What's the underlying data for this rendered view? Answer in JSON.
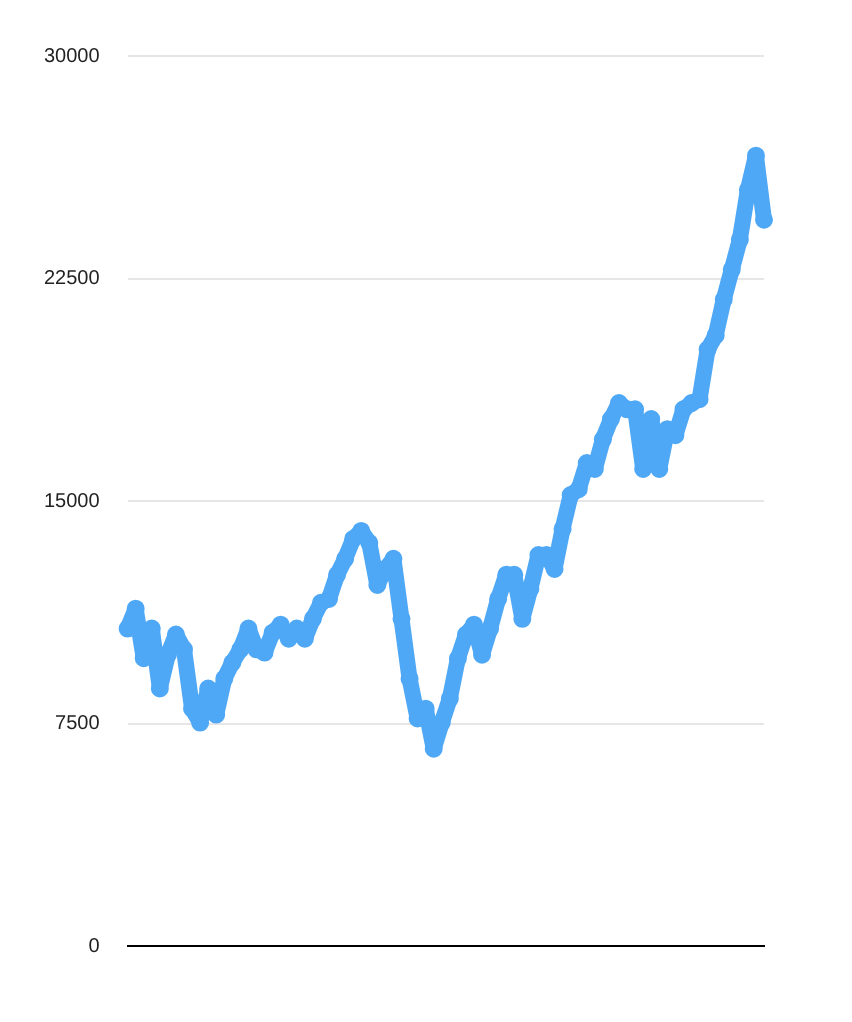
{
  "chart_data": {
    "type": "line",
    "categories": [
      null,
      null,
      null,
      null,
      null,
      null,
      null,
      null,
      null,
      null,
      null,
      null,
      null,
      null,
      null,
      null,
      null,
      null,
      null,
      null,
      null,
      null,
      null,
      null,
      null,
      null,
      null,
      null,
      null,
      null,
      null,
      null,
      null,
      null,
      null,
      null,
      null,
      null,
      null,
      null,
      null,
      null,
      null,
      null,
      null,
      null,
      null,
      null,
      null,
      null,
      null,
      null,
      null,
      null,
      null,
      null,
      null,
      null,
      null,
      null,
      null,
      null,
      null,
      null,
      null,
      null,
      null,
      null,
      null,
      null,
      null,
      null,
      null,
      null,
      null,
      null,
      null,
      null,
      null,
      null
    ],
    "series": [
      {
        "color": "#4fa8f6",
        "values": [
          10700,
          11370,
          9700,
          10700,
          8680,
          9820,
          10500,
          10000,
          8000,
          7530,
          8680,
          7800,
          9010,
          9550,
          10000,
          10700,
          10000,
          9890,
          10560,
          10830,
          10360,
          10700,
          10360,
          11030,
          11570,
          11700,
          12510,
          13050,
          13720,
          13990,
          13590,
          12170,
          12710,
          13050,
          11030,
          9010,
          7670,
          8000,
          6650,
          7530,
          8340,
          9690,
          10500,
          10830,
          9820,
          10700,
          11700,
          12510,
          12510,
          11030,
          12040,
          13180,
          13180,
          12710,
          14060,
          15200,
          15400,
          16280,
          16080,
          17080,
          17760,
          18300,
          18090,
          18090,
          16080,
          17760,
          16080,
          17420,
          17220,
          18090,
          18300,
          18430,
          20110,
          20580,
          21790,
          22800,
          23810,
          25490,
          26640,
          24480
        ]
      }
    ],
    "ylim": [
      0,
      30000
    ],
    "yticks": [
      0,
      7500,
      15000,
      22500,
      30000
    ],
    "grid": "y",
    "legend": false,
    "tick_labels": "y",
    "marker": "circle",
    "line_style": "solid"
  }
}
